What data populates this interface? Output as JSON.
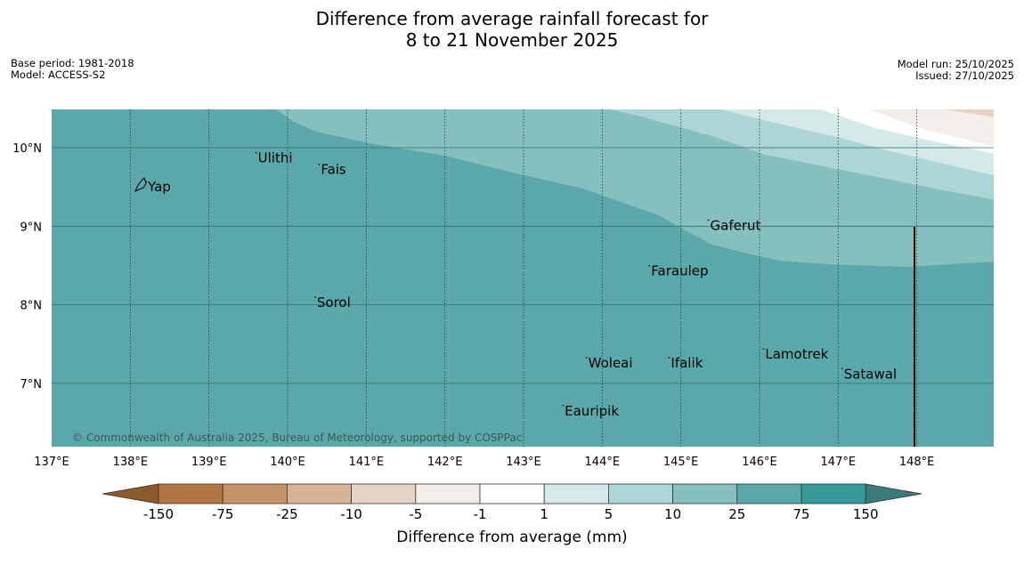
{
  "title": {
    "line1": "Difference from average rainfall forecast for",
    "line2": "8 to 21 November 2025"
  },
  "meta_left": {
    "base_period": "Base period: 1981-2018",
    "model": "Model: ACCESS-S2"
  },
  "meta_right": {
    "model_run": "Model run: 25/10/2025",
    "issued": "Issued: 27/10/2025"
  },
  "map": {
    "lon_range": [
      137,
      149
    ],
    "lat_range": [
      6.2,
      10.5
    ],
    "lon_ticks": [
      "137°E",
      "138°E",
      "139°E",
      "140°E",
      "141°E",
      "142°E",
      "143°E",
      "144°E",
      "145°E",
      "146°E",
      "147°E",
      "148°E"
    ],
    "lat_ticks": [
      "10°N",
      "9°N",
      "8°N",
      "7°N"
    ],
    "copyright": "© Commonwealth of Australia 2025, Bureau of Meteorology, supported by COSPPac",
    "places": [
      {
        "name": "Yap",
        "lon": 138.2,
        "lat": 9.5
      },
      {
        "name": "Ulithi",
        "lon": 139.6,
        "lat": 9.87
      },
      {
        "name": "Fais",
        "lon": 140.4,
        "lat": 9.72
      },
      {
        "name": "Sorol",
        "lon": 140.35,
        "lat": 8.03
      },
      {
        "name": "Gaferut",
        "lon": 145.35,
        "lat": 9.01
      },
      {
        "name": "Faraulep",
        "lon": 144.6,
        "lat": 8.43
      },
      {
        "name": "Lamotrek",
        "lon": 146.05,
        "lat": 7.37
      },
      {
        "name": "Woleai",
        "lon": 143.8,
        "lat": 7.26
      },
      {
        "name": "Ifalik",
        "lon": 144.85,
        "lat": 7.26
      },
      {
        "name": "Satawal",
        "lon": 147.05,
        "lat": 7.12
      },
      {
        "name": "Eauripik",
        "lon": 143.5,
        "lat": 6.65
      }
    ]
  },
  "legend": {
    "title": "Difference from average (mm)",
    "bins": [
      "-150",
      "-75",
      "-25",
      "-10",
      "-5",
      "-1",
      "1",
      "5",
      "10",
      "25",
      "75",
      "150"
    ],
    "colors": [
      "#8a5a2b",
      "#b07540",
      "#c49266",
      "#d6b395",
      "#e6d3c3",
      "#f3eee9",
      "#ffffff",
      "#d6e9e9",
      "#acd5d6",
      "#85c0bf",
      "#5aa8aa",
      "#359a9a",
      "#3b7b7b"
    ]
  },
  "colors": {
    "band_10_25": "#85c0bf",
    "band_5_10": "#acd5d6",
    "band_1_5": "#d6e9e9",
    "band_neg5_neg1": "#f3eee9",
    "band_25_75": "#5aa8aa"
  }
}
